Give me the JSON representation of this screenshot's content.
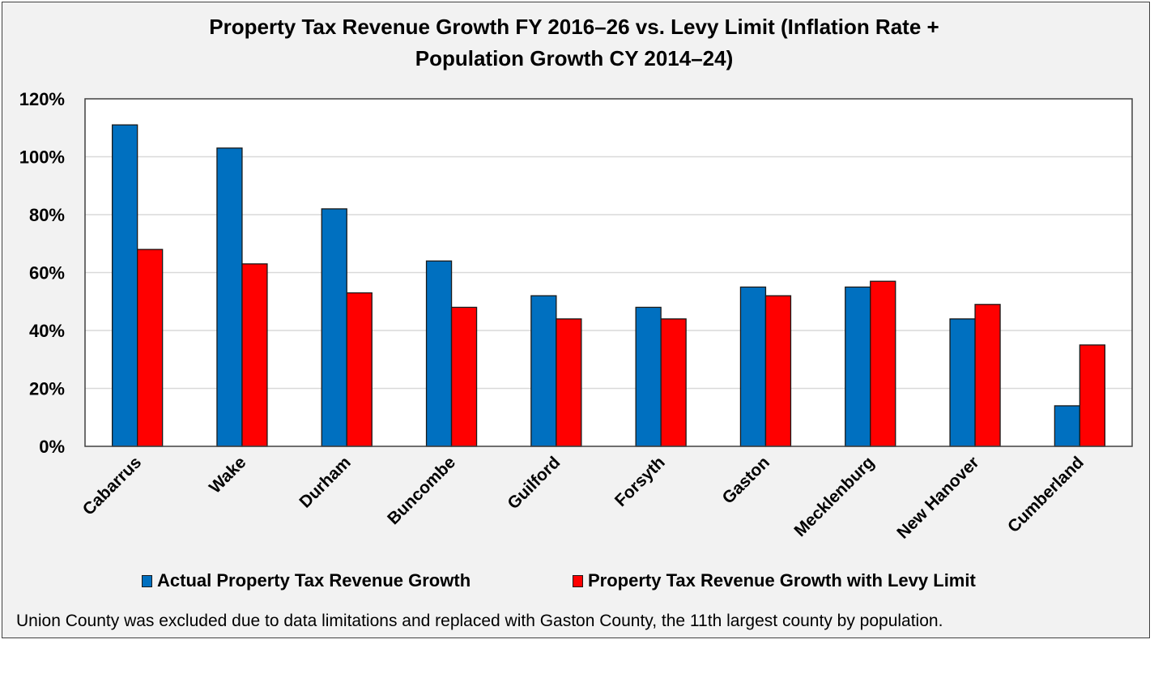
{
  "chart_data": {
    "type": "bar",
    "title": "Property Tax Revenue Growth FY 2016–26 vs. Levy Limit (Inflation Rate + Population Growth CY 2014–24)",
    "title_lines": [
      "Property Tax Revenue Growth FY 2016–26 vs. Levy Limit (Inflation Rate +",
      "Population Growth CY 2014–24)"
    ],
    "xlabel": "",
    "ylabel": "",
    "ylim": [
      0,
      120
    ],
    "yticks": [
      0,
      20,
      40,
      60,
      80,
      100,
      120
    ],
    "ytick_labels": [
      "0%",
      "20%",
      "40%",
      "60%",
      "80%",
      "100%",
      "120%"
    ],
    "grid": true,
    "legend_position": "bottom",
    "categories": [
      "Cabarrus",
      "Wake",
      "Durham",
      "Buncombe",
      "Guilford",
      "Forsyth",
      "Gaston",
      "Mecklenburg",
      "New Hanover",
      "Cumberland"
    ],
    "series": [
      {
        "name": "Actual Property Tax Revenue Growth",
        "color": "#0070c0",
        "values": [
          111,
          103,
          82,
          64,
          52,
          48,
          55,
          55,
          44,
          14
        ]
      },
      {
        "name": "Property Tax Revenue Growth with Levy Limit",
        "color": "#ff0000",
        "values": [
          68,
          63,
          53,
          48,
          44,
          44,
          52,
          57,
          49,
          35
        ]
      }
    ],
    "annotations": [
      "Union County was excluded due to data limitations and replaced with Gaston County, the 11th largest county by population."
    ]
  },
  "legend": {
    "items": [
      {
        "label": "Actual Property Tax Revenue Growth",
        "color": "#0070c0"
      },
      {
        "label": "Property Tax Revenue Growth with Levy Limit",
        "color": "#ff0000"
      }
    ]
  },
  "footnote": "Union County was excluded due to data limitations and replaced with Gaston County, the 11th largest county by population."
}
